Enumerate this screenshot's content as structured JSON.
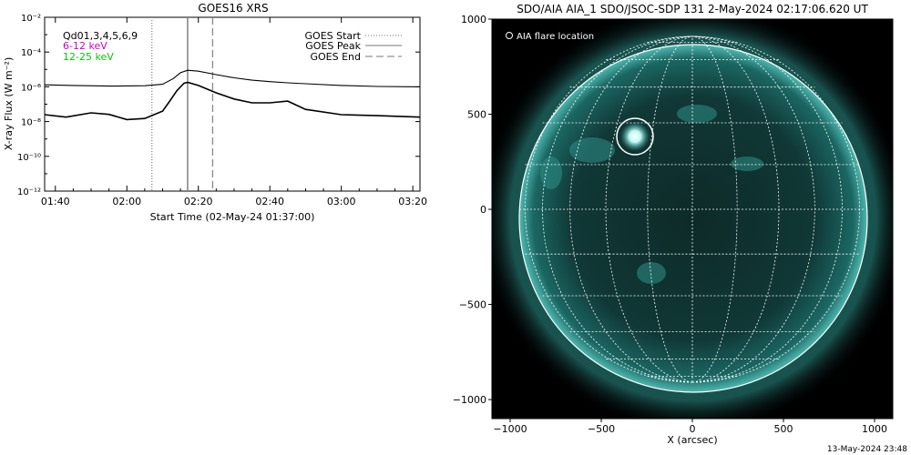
{
  "chart_data": [
    {
      "type": "line",
      "title": "GOES16 XRS",
      "xlabel": "Start Time (02-May-24 01:37:00)",
      "ylabel": "X-ray Flux (W m⁻²)",
      "yscale": "log",
      "ylim_exponent": [
        -12,
        -2
      ],
      "y_tick_labels": [
        "10⁻¹²",
        "10⁻¹⁰",
        "10⁻⁸",
        "10⁻⁶",
        "10⁻⁴",
        "10⁻²"
      ],
      "y_tick_exponents": [
        -12,
        -10,
        -8,
        -6,
        -4,
        -2
      ],
      "xlim": [
        "01:37",
        "03:22"
      ],
      "x_ticks": [
        "01:40",
        "02:00",
        "02:20",
        "02:40",
        "03:00",
        "03:20"
      ],
      "legend_position": "top-left and top-right",
      "channel_legend": [
        {
          "label": "Qd01,3,4,5,6,9",
          "color": "#000000"
        },
        {
          "label": "6-12 keV",
          "color": "#cc00cc"
        },
        {
          "label": "12-25 keV",
          "color": "#00cc00"
        }
      ],
      "markers_legend": [
        {
          "label": "GOES Start",
          "style": "dotted",
          "time": "02:07"
        },
        {
          "label": "GOES Peak",
          "style": "solid",
          "time": "02:17"
        },
        {
          "label": "GOES End",
          "style": "dashed",
          "time": "02:24"
        }
      ],
      "series": [
        {
          "x": [
            "01:37",
            "01:45",
            "01:55",
            "02:05",
            "02:10",
            "02:13",
            "02:15",
            "02:17",
            "02:20",
            "02:25",
            "02:30",
            "02:35",
            "02:40",
            "02:45",
            "02:50",
            "03:00",
            "03:10",
            "03:22"
          ],
          "y": [
            1.3e-06,
            1.2e-06,
            1.1e-06,
            1.15e-06,
            1.4e-06,
            3e-06,
            6.5e-06,
            9e-06,
            8e-06,
            5e-06,
            3.3e-06,
            2.4e-06,
            2e-06,
            1.7e-06,
            1.5e-06,
            1.2e-06,
            1.05e-06,
            1e-06
          ]
        },
        {
          "x": [
            "01:37",
            "01:43",
            "01:50",
            "01:55",
            "02:00",
            "02:05",
            "02:10",
            "02:12",
            "02:14",
            "02:16",
            "02:17",
            "02:20",
            "02:25",
            "02:30",
            "02:35",
            "02:40",
            "02:45",
            "02:50",
            "03:00",
            "03:10",
            "03:22"
          ],
          "y": [
            2.5e-08,
            1.8e-08,
            3.2e-08,
            2.6e-08,
            1.3e-08,
            1.5e-08,
            4e-08,
            1.5e-07,
            6e-07,
            1.6e-06,
            1.8e-06,
            1.2e-06,
            4.5e-07,
            2e-07,
            1.2e-07,
            1.2e-07,
            1.5e-07,
            5e-08,
            2.5e-08,
            2.2e-08,
            1.8e-08
          ]
        }
      ]
    },
    {
      "type": "scatter",
      "title": "SDO/AIA AIA_1 SDO/JSOC-SDP 131  2-May-2024 02:17:06.620 UT",
      "xlabel": "X (arcsec)",
      "ylabel": "",
      "xlim": [
        -1100,
        1100
      ],
      "ylim": [
        -1100,
        1000
      ],
      "x_ticks": [
        -1000,
        -500,
        0,
        500,
        1000
      ],
      "y_ticks": [
        -1000,
        -500,
        0,
        500,
        1000
      ],
      "x_tick_labels": [
        "−1000",
        "−500",
        "0",
        "500",
        "1000"
      ],
      "y_tick_labels": [
        "−1000",
        "−500",
        "0",
        "500",
        "1000"
      ],
      "grid": "heliographic",
      "legend": "AIA flare location",
      "legend_position": "top-left",
      "solar_radius_arcsec": 950,
      "flare_location": {
        "x": -320,
        "y": 450,
        "circle_radius": 100
      },
      "image_colormap": "teal"
    }
  ],
  "footer": {
    "timestamp": "13-May-2024 23:48"
  }
}
